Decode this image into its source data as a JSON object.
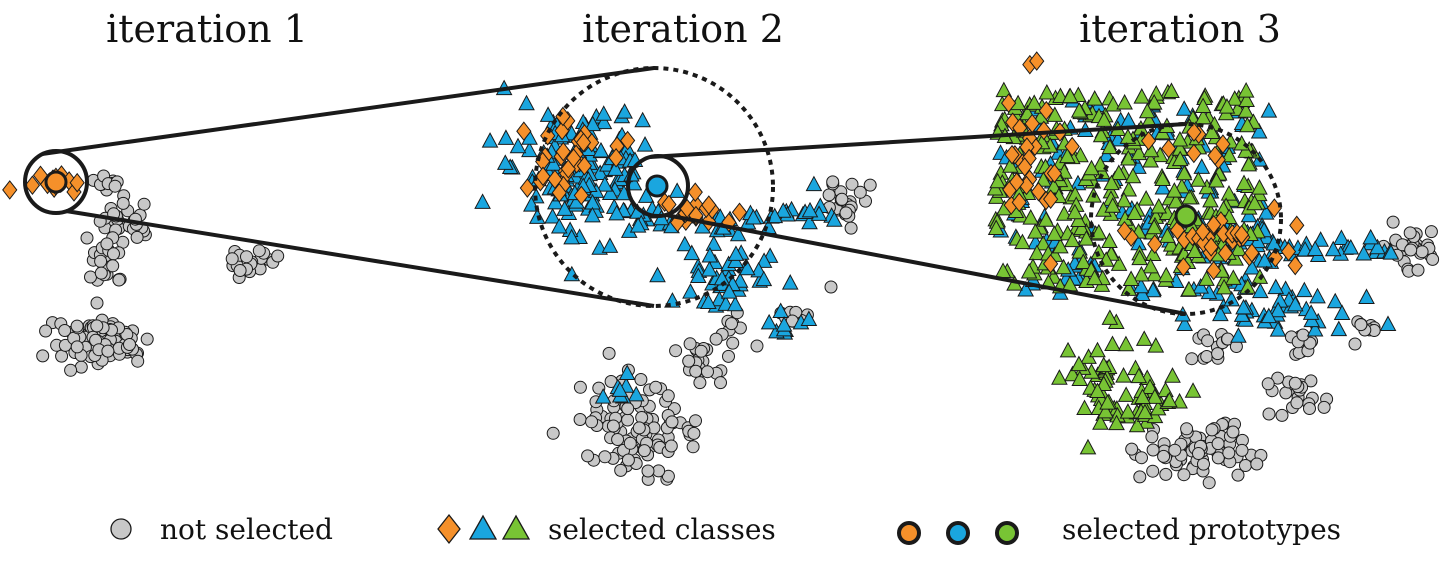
{
  "titles": [
    "iteration 1",
    "iteration 2",
    "iteration 3"
  ],
  "legend": {
    "not_selected": "not selected",
    "selected_classes": "selected classes",
    "selected_prototypes": "selected prototypes"
  },
  "colors": {
    "gray": "#c8c8c8",
    "orange": "#f5902a",
    "blue": "#1aa6df",
    "green": "#78c434",
    "outline": "#1a1a1a"
  },
  "marker_shapes": {
    "not_selected": "circle",
    "class_1": "diamond",
    "class_2": "triangle",
    "class_3": "triangle"
  }
}
